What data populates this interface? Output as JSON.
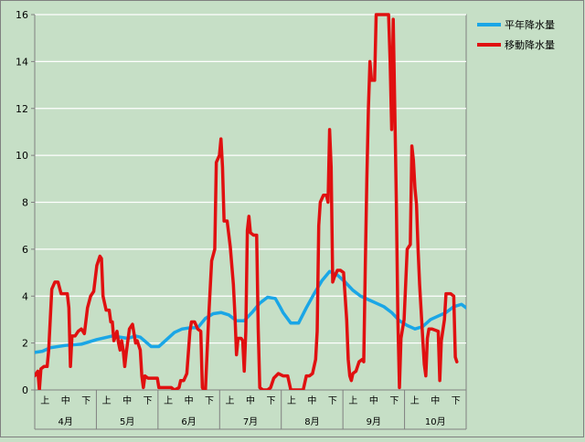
{
  "chart_data": {
    "type": "line",
    "title": "",
    "xlabel": "",
    "ylabel": "",
    "ylim": [
      0,
      16
    ],
    "yticks": [
      0,
      2,
      4,
      6,
      8,
      10,
      12,
      14,
      16
    ],
    "grid": "horizontal",
    "legend_position": "top-right",
    "months": [
      "4月",
      "5月",
      "6月",
      "7月",
      "8月",
      "9月",
      "10月"
    ],
    "period_labels": [
      "上",
      "中",
      "下"
    ],
    "x_unit": "day index from Apr 1 (0-213)",
    "series": [
      {
        "name": "平年降水量",
        "color": "#1aa6e6",
        "points": [
          [
            0,
            1.6
          ],
          [
            5,
            1.65
          ],
          [
            10,
            1.8
          ],
          [
            20,
            1.9
          ],
          [
            30,
            1.95
          ],
          [
            40,
            2.15
          ],
          [
            50,
            2.3
          ],
          [
            60,
            2.2
          ],
          [
            65,
            2.3
          ],
          [
            68,
            2.25
          ],
          [
            75,
            1.85
          ],
          [
            80,
            1.85
          ],
          [
            85,
            2.15
          ],
          [
            90,
            2.45
          ],
          [
            95,
            2.6
          ],
          [
            100,
            2.65
          ],
          [
            105,
            2.65
          ],
          [
            110,
            3.05
          ],
          [
            115,
            3.25
          ],
          [
            120,
            3.3
          ],
          [
            125,
            3.2
          ],
          [
            130,
            2.95
          ],
          [
            135,
            2.95
          ],
          [
            140,
            3.3
          ],
          [
            145,
            3.7
          ],
          [
            150,
            3.95
          ],
          [
            155,
            3.9
          ],
          [
            158,
            3.55
          ],
          [
            160,
            3.3
          ],
          [
            165,
            2.85
          ],
          [
            170,
            2.85
          ],
          [
            175,
            3.5
          ],
          [
            180,
            4.1
          ],
          [
            185,
            4.65
          ],
          [
            190,
            5.05
          ],
          [
            195,
            4.9
          ],
          [
            200,
            4.6
          ],
          [
            205,
            4.25
          ],
          [
            210,
            4.0
          ],
          [
            215,
            3.85
          ],
          [
            220,
            3.7
          ],
          [
            225,
            3.55
          ],
          [
            230,
            3.3
          ],
          [
            235,
            2.95
          ],
          [
            240,
            2.75
          ],
          [
            245,
            2.6
          ],
          [
            250,
            2.7
          ],
          [
            255,
            3.0
          ],
          [
            260,
            3.15
          ],
          [
            265,
            3.3
          ],
          [
            270,
            3.55
          ],
          [
            275,
            3.65
          ],
          [
            278,
            3.5
          ]
        ]
      },
      {
        "name": "移動降水量",
        "color": "#e01010",
        "points": [
          [
            0,
            0.6
          ],
          [
            2,
            0.8
          ],
          [
            3,
            0.0
          ],
          [
            4,
            0.9
          ],
          [
            6,
            1.0
          ],
          [
            8,
            1.0
          ],
          [
            9,
            1.7
          ],
          [
            11,
            4.3
          ],
          [
            13,
            4.6
          ],
          [
            15,
            4.6
          ],
          [
            17,
            4.1
          ],
          [
            19,
            4.1
          ],
          [
            21,
            4.1
          ],
          [
            22,
            3.5
          ],
          [
            23,
            1.0
          ],
          [
            24,
            2.3
          ],
          [
            26,
            2.3
          ],
          [
            28,
            2.5
          ],
          [
            30,
            2.6
          ],
          [
            32,
            2.4
          ],
          [
            34,
            3.5
          ],
          [
            36,
            4.0
          ],
          [
            38,
            4.2
          ],
          [
            40,
            5.3
          ],
          [
            42,
            5.7
          ],
          [
            43,
            5.6
          ],
          [
            44,
            4.0
          ],
          [
            46,
            3.4
          ],
          [
            48,
            3.4
          ],
          [
            49,
            2.9
          ],
          [
            50,
            2.9
          ],
          [
            51,
            2.1
          ],
          [
            53,
            2.5
          ],
          [
            54,
            2.0
          ],
          [
            55,
            1.7
          ],
          [
            56,
            2.1
          ],
          [
            57,
            1.7
          ],
          [
            58,
            1.0
          ],
          [
            59,
            1.6
          ],
          [
            61,
            2.6
          ],
          [
            63,
            2.8
          ],
          [
            64,
            2.4
          ],
          [
            65,
            2.0
          ],
          [
            66,
            2.1
          ],
          [
            68,
            1.7
          ],
          [
            69,
            0.6
          ],
          [
            70,
            0.1
          ],
          [
            71,
            0.6
          ],
          [
            73,
            0.5
          ],
          [
            75,
            0.5
          ],
          [
            79,
            0.5
          ],
          [
            80,
            0.1
          ],
          [
            84,
            0.1
          ],
          [
            88,
            0.1
          ],
          [
            90,
            0.0
          ],
          [
            93,
            0.1
          ],
          [
            94,
            0.4
          ],
          [
            96,
            0.4
          ],
          [
            98,
            0.7
          ],
          [
            100,
            2.5
          ],
          [
            101,
            2.9
          ],
          [
            103,
            2.9
          ],
          [
            105,
            2.6
          ],
          [
            107,
            2.5
          ],
          [
            108,
            0.1
          ],
          [
            109,
            0.0
          ],
          [
            110,
            0.0
          ],
          [
            111,
            1.5
          ],
          [
            112,
            3.0
          ],
          [
            114,
            5.5
          ],
          [
            116,
            6.0
          ],
          [
            117,
            9.7
          ],
          [
            119,
            10.0
          ],
          [
            120,
            10.7
          ],
          [
            121,
            9.5
          ],
          [
            122,
            7.2
          ],
          [
            124,
            7.2
          ],
          [
            126,
            6.1
          ],
          [
            128,
            4.5
          ],
          [
            129,
            3.2
          ],
          [
            130,
            1.5
          ],
          [
            131,
            2.2
          ],
          [
            133,
            2.2
          ],
          [
            134,
            2.1
          ],
          [
            135,
            0.8
          ],
          [
            136,
            2.5
          ],
          [
            137,
            6.8
          ],
          [
            138,
            7.4
          ],
          [
            139,
            6.7
          ],
          [
            141,
            6.6
          ],
          [
            143,
            6.6
          ],
          [
            144,
            2.6
          ],
          [
            145,
            0.1
          ],
          [
            147,
            0.0
          ],
          [
            150,
            0.0
          ],
          [
            152,
            0.1
          ],
          [
            154,
            0.5
          ],
          [
            157,
            0.7
          ],
          [
            160,
            0.6
          ],
          [
            163,
            0.6
          ],
          [
            165,
            0.0
          ],
          [
            170,
            0.0
          ],
          [
            173,
            0.0
          ],
          [
            175,
            0.6
          ],
          [
            177,
            0.6
          ],
          [
            179,
            0.7
          ],
          [
            180,
            1.0
          ],
          [
            181,
            1.3
          ],
          [
            182,
            2.5
          ],
          [
            183,
            7.0
          ],
          [
            184,
            8.0
          ],
          [
            186,
            8.3
          ],
          [
            188,
            8.3
          ],
          [
            189,
            8.0
          ],
          [
            190,
            11.1
          ],
          [
            191,
            9.5
          ],
          [
            192,
            4.6
          ],
          [
            193,
            4.8
          ],
          [
            195,
            5.1
          ],
          [
            197,
            5.1
          ],
          [
            199,
            5.0
          ],
          [
            201,
            3.0
          ],
          [
            202,
            1.3
          ],
          [
            203,
            0.6
          ],
          [
            204,
            0.4
          ],
          [
            205,
            0.7
          ],
          [
            207,
            0.8
          ],
          [
            209,
            1.2
          ],
          [
            211,
            1.3
          ],
          [
            212,
            1.2
          ],
          [
            213,
            5.3
          ],
          [
            214,
            9.0
          ],
          [
            215,
            12.0
          ],
          [
            216,
            14.0
          ],
          [
            217,
            13.2
          ],
          [
            219,
            13.2
          ],
          [
            220,
            16.0
          ],
          [
            222,
            16.0
          ],
          [
            226,
            16.0
          ],
          [
            228,
            16.0
          ],
          [
            229,
            14.0
          ],
          [
            230,
            11.1
          ],
          [
            231,
            15.8
          ],
          [
            232,
            12.0
          ],
          [
            233,
            8.0
          ],
          [
            234,
            3.0
          ],
          [
            235,
            0.1
          ],
          [
            236,
            2.2
          ],
          [
            238,
            3.0
          ],
          [
            240,
            6.0
          ],
          [
            242,
            6.2
          ],
          [
            243,
            10.4
          ],
          [
            244,
            9.8
          ],
          [
            245,
            8.6
          ],
          [
            246,
            7.9
          ],
          [
            247,
            6.0
          ],
          [
            248,
            4.5
          ],
          [
            250,
            2.2
          ],
          [
            251,
            1.1
          ],
          [
            252,
            0.6
          ],
          [
            253,
            2.2
          ],
          [
            254,
            2.6
          ],
          [
            256,
            2.6
          ],
          [
            260,
            2.5
          ],
          [
            261,
            0.4
          ],
          [
            262,
            2.1
          ],
          [
            264,
            3.0
          ],
          [
            265,
            4.1
          ],
          [
            268,
            4.1
          ],
          [
            270,
            4.0
          ],
          [
            271,
            1.4
          ],
          [
            272,
            1.2
          ]
        ]
      }
    ]
  }
}
